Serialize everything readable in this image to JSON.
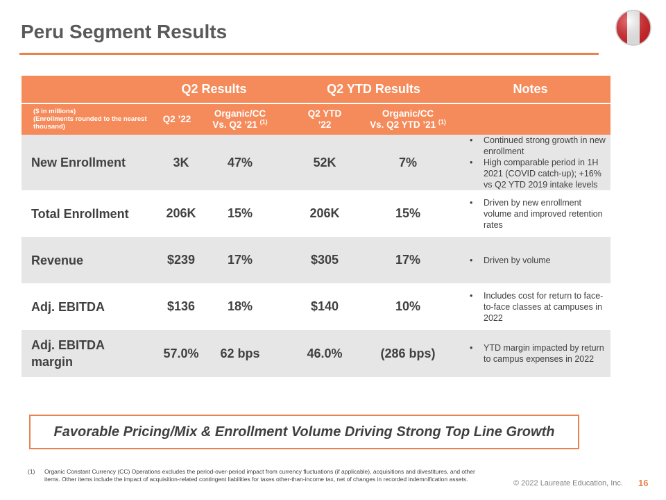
{
  "page": {
    "title": "Peru Segment Results",
    "banner": "Favorable Pricing/Mix & Enrollment Volume Driving Strong Top Line Growth",
    "footnote_marker": "(1)",
    "footnote": "Organic Constant Currency (CC) Operations excludes the period-over-period impact from currency fluctuations (if applicable), acquisitions and divestitures, and other items. Other items include the impact of acquisition-related contingent liabilities for taxes other-than-income tax, net of changes in recorded indemnification assets.",
    "copyright": "© 2022 Laureate Education, Inc.",
    "page_number": "16"
  },
  "colors": {
    "accent": "#f58b5b",
    "rule": "#e8834f",
    "row_gray": "#e6e6e6",
    "flag_red": "#e0282d"
  },
  "icons": {
    "flag": "peru-flag-icon"
  },
  "table": {
    "group_headers": {
      "q2": "Q2 Results",
      "ytd": "Q2 YTD Results",
      "notes": "Notes"
    },
    "units_note": "($ in millions)\n(Enrollments rounded to the nearest thousand)",
    "columns": {
      "q2": "Q2 ’22",
      "q2_organic": "Organic/CC\nVs. Q2 ’21 ",
      "ytd": "Q2 YTD\n’22",
      "ytd_organic": "Organic/CC\nVs. Q2 YTD ’21 ",
      "footnote_ref": "(1)"
    },
    "rows": [
      {
        "metric": "New Enrollment",
        "q2": "3K",
        "q2_organic": "47%",
        "ytd": "52K",
        "ytd_organic": "7%",
        "notes": [
          "Continued strong growth in new enrollment",
          "High comparable period in 1H 2021 (COVID catch-up); +16% vs Q2 YTD 2019 intake levels"
        ]
      },
      {
        "metric": "Total Enrollment",
        "q2": "206K",
        "q2_organic": "15%",
        "ytd": "206K",
        "ytd_organic": "15%",
        "notes": [
          "Driven by new enrollment volume and improved retention rates"
        ]
      },
      {
        "metric": "Revenue",
        "q2": "$239",
        "q2_organic": "17%",
        "ytd": "$305",
        "ytd_organic": "17%",
        "notes": [
          "Driven by volume"
        ]
      },
      {
        "metric": "Adj. EBITDA",
        "q2": "$136",
        "q2_organic": "18%",
        "ytd": "$140",
        "ytd_organic": "10%",
        "notes": [
          "Includes cost for return to face-to-face classes at campuses in 2022"
        ]
      },
      {
        "metric": "Adj. EBITDA margin",
        "q2": "57.0%",
        "q2_organic": "62 bps",
        "ytd": "46.0%",
        "ytd_organic": "(286 bps)",
        "notes": [
          "YTD margin impacted by return to campus expenses in 2022"
        ]
      }
    ]
  }
}
